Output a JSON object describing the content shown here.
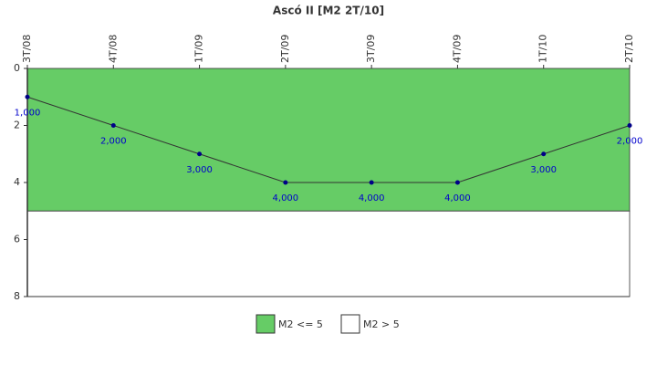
{
  "chart_data": {
    "type": "line",
    "title": "Ascó II [M2 2T/10]",
    "categories": [
      "3T/08",
      "4T/08",
      "1T/09",
      "2T/09",
      "3T/09",
      "4T/09",
      "1T/10",
      "2T/10"
    ],
    "series": [
      {
        "color": "#333333",
        "marker_color": "#000088",
        "label_color": "#0000cc",
        "values": [
          1,
          2,
          3,
          4,
          4,
          4,
          3,
          2
        ],
        "value_labels": [
          "1,000",
          "2,000",
          "3,000",
          "4,000",
          "4,000",
          "4,000",
          "3,000",
          "2,000"
        ]
      }
    ],
    "bands": [
      {
        "name": "M2 <= 5",
        "color": "#66cc66",
        "range": [
          0,
          5
        ]
      },
      {
        "name": "M2 > 5",
        "color": "#ffffff",
        "range": [
          5,
          8
        ]
      }
    ],
    "ylim": [
      0,
      8
    ],
    "yticks": [
      0,
      2,
      4,
      6,
      8
    ],
    "y_inverted": true
  }
}
